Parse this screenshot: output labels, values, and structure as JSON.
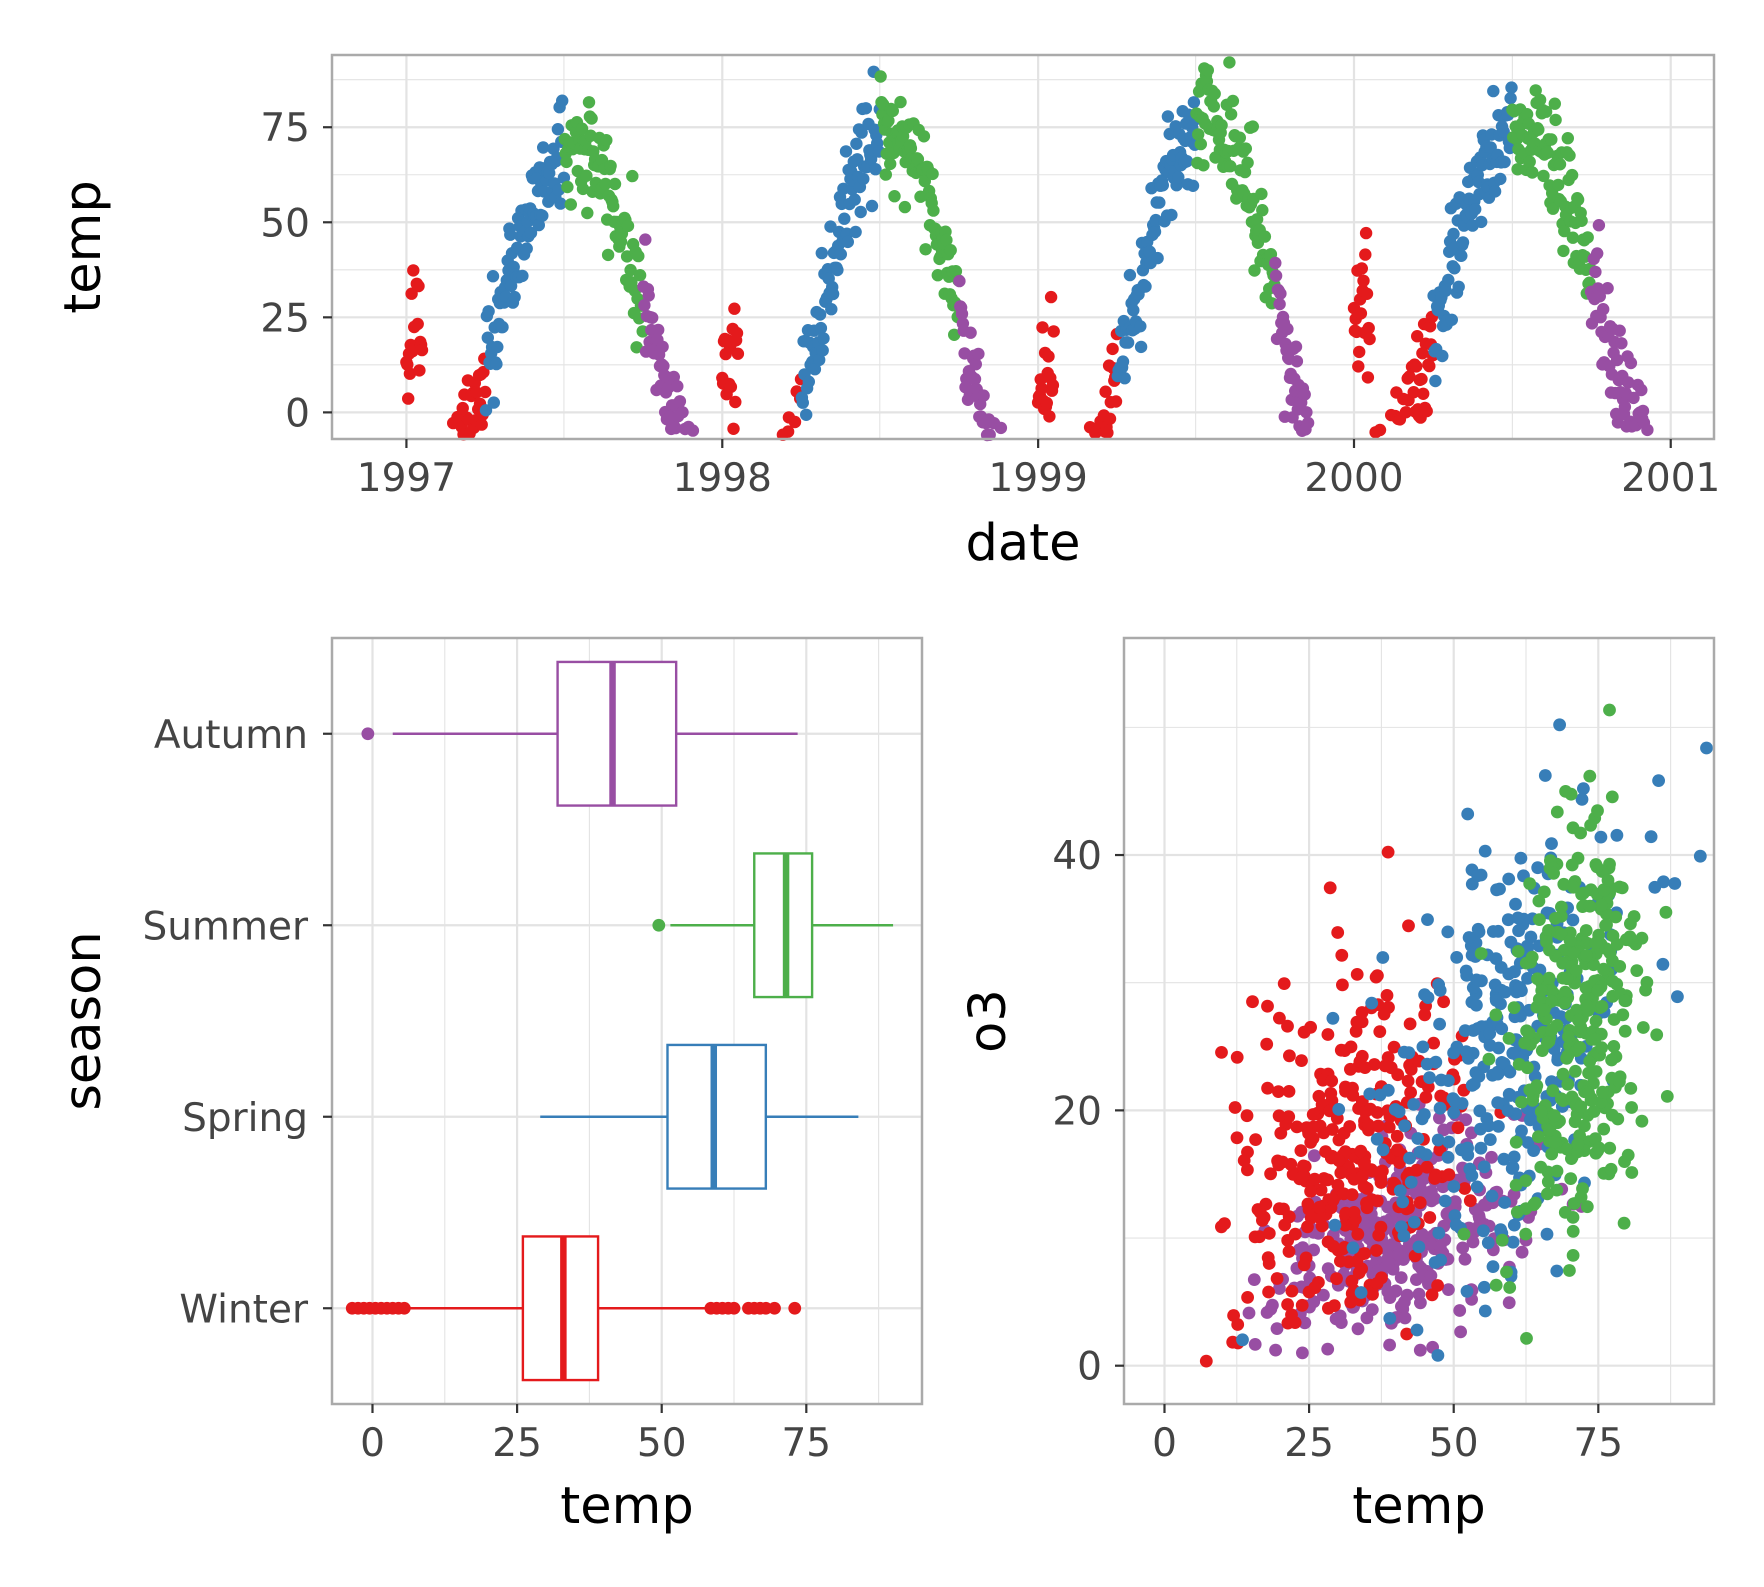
{
  "colors": {
    "Winter": "#E41A1C",
    "Spring": "#377EB8",
    "Summer": "#4DAF4A",
    "Autumn": "#984EA3",
    "panel_border": "#AAAAAA",
    "grid": "#E3E3E3",
    "tick_text": "#444444"
  },
  "chart_data": [
    {
      "type": "scatter",
      "xlabel": "date",
      "ylabel": "temp",
      "x_ticks": [
        "1997",
        "1998",
        "1999",
        "2000",
        "2001"
      ],
      "y_ticks": [
        "0",
        "25",
        "50",
        "75"
      ],
      "xlim": [
        "1996-10-07",
        "2001-02-20"
      ],
      "ylim": [
        -7,
        94
      ],
      "grid": true,
      "legend": "none",
      "color_by": "season",
      "seasonal_points_per_year": {
        "start_year": 1997,
        "jan1_temp": [
          23,
          17,
          11,
          28
        ],
        "summer_peak": [
          72,
          78,
          81,
          78
        ],
        "note": "daily points, colored by season (Winter Jan-Mar, Spring Apr-Jun, Summer Jul-Sep, Autumn Oct-Dec)"
      }
    },
    {
      "type": "box",
      "xlabel": "temp",
      "ylabel": "season",
      "categories": [
        "Autumn",
        "Summer",
        "Spring",
        "Winter"
      ],
      "x_ticks": [
        "0",
        "25",
        "50",
        "75"
      ],
      "xlim": [
        -7,
        95
      ],
      "grid": true,
      "legend": "none",
      "boxes": [
        {
          "name": "Autumn",
          "q1": 32,
          "median": 41.5,
          "q3": 52.5,
          "whisker_low": 3.5,
          "whisker_high": 73.5,
          "outliers": [
            -0.8
          ]
        },
        {
          "name": "Summer",
          "q1": 66,
          "median": 71.5,
          "q3": 76,
          "whisker_low": 51.5,
          "whisker_high": 90,
          "outliers": [
            49.5
          ]
        },
        {
          "name": "Spring",
          "q1": 51,
          "median": 59,
          "q3": 68,
          "whisker_low": 29,
          "whisker_high": 84,
          "outliers": []
        },
        {
          "name": "Winter",
          "q1": 26,
          "median": 33,
          "q3": 39,
          "whisker_low": 6.5,
          "whisker_high": 57.5,
          "outliers": [
            -3.5,
            -2.5,
            -1.5,
            -0.5,
            0.5,
            1.5,
            2.5,
            3.5,
            4.5,
            5.5,
            58.5,
            59.5,
            60.5,
            61.5,
            62.5,
            65,
            66,
            67,
            68,
            69.5,
            73
          ]
        }
      ]
    },
    {
      "type": "scatter",
      "xlabel": "temp",
      "ylabel": "o3",
      "x_ticks": [
        "0",
        "25",
        "50",
        "75"
      ],
      "y_ticks": [
        "0",
        "20",
        "40"
      ],
      "xlim": [
        -7,
        95
      ],
      "ylim": [
        -3,
        57
      ],
      "grid": true,
      "legend": "none",
      "color_by": "season",
      "clusters": [
        {
          "name": "Autumn",
          "temp_mean": 40,
          "temp_sd": 11,
          "o3_mean": 10,
          "o3_sd": 3.5
        },
        {
          "name": "Winter",
          "temp_mean": 32,
          "temp_sd": 10,
          "o3_mean": 16,
          "o3_sd": 7
        },
        {
          "name": "Spring",
          "temp_mean": 59,
          "temp_sd": 11,
          "o3_mean": 25,
          "o3_sd": 8
        },
        {
          "name": "Summer",
          "temp_mean": 71,
          "temp_sd": 6,
          "o3_mean": 26,
          "o3_sd": 9
        }
      ]
    }
  ]
}
